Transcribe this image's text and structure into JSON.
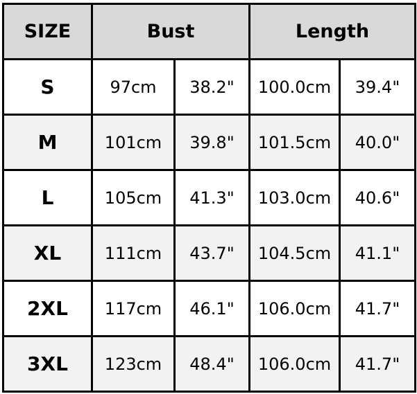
{
  "header": {
    "size": "SIZE",
    "bust": "Bust",
    "length": "Length"
  },
  "colors": {
    "header_bg": "#d9d9d9",
    "alt_row_bg": "#f2f2f2",
    "border": "#000000"
  },
  "rows": [
    {
      "size": "S",
      "bust_cm": "97cm",
      "bust_in": "38.2\"",
      "length_cm": "100.0cm",
      "length_in": "39.4\""
    },
    {
      "size": "M",
      "bust_cm": "101cm",
      "bust_in": "39.8\"",
      "length_cm": "101.5cm",
      "length_in": "40.0\""
    },
    {
      "size": "L",
      "bust_cm": "105cm",
      "bust_in": "41.3\"",
      "length_cm": "103.0cm",
      "length_in": "40.6\""
    },
    {
      "size": "XL",
      "bust_cm": "111cm",
      "bust_in": "43.7\"",
      "length_cm": "104.5cm",
      "length_in": "41.1\""
    },
    {
      "size": "2XL",
      "bust_cm": "117cm",
      "bust_in": "46.1\"",
      "length_cm": "106.0cm",
      "length_in": "41.7\""
    },
    {
      "size": "3XL",
      "bust_cm": "123cm",
      "bust_in": "48.4\"",
      "length_cm": "106.0cm",
      "length_in": "41.7\""
    }
  ]
}
